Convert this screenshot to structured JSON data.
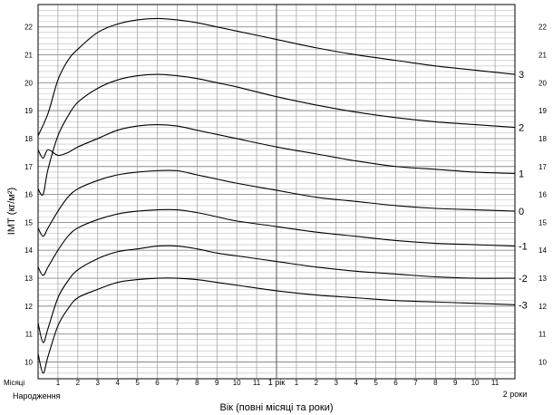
{
  "chart_data": {
    "type": "line",
    "xlabel": "Вік (повні місяці та роки)",
    "ylabel": "ІМТ (кг/м²)",
    "ylim": [
      9.4,
      22.8
    ],
    "xlim": [
      0,
      24
    ],
    "grid": true,
    "month_row_label": "Місяці",
    "x_ticks": [
      {
        "x": 0,
        "label": "Народження"
      },
      {
        "x": 1,
        "label": "1"
      },
      {
        "x": 2,
        "label": "2"
      },
      {
        "x": 3,
        "label": "3"
      },
      {
        "x": 4,
        "label": "4"
      },
      {
        "x": 5,
        "label": "5"
      },
      {
        "x": 6,
        "label": "6"
      },
      {
        "x": 7,
        "label": "7"
      },
      {
        "x": 8,
        "label": "8"
      },
      {
        "x": 9,
        "label": "9"
      },
      {
        "x": 10,
        "label": "10"
      },
      {
        "x": 11,
        "label": "11"
      },
      {
        "x": 12,
        "label": "1 рік"
      },
      {
        "x": 13,
        "label": "1"
      },
      {
        "x": 14,
        "label": "2"
      },
      {
        "x": 15,
        "label": "3"
      },
      {
        "x": 16,
        "label": "4"
      },
      {
        "x": 17,
        "label": "5"
      },
      {
        "x": 18,
        "label": "6"
      },
      {
        "x": 19,
        "label": "7"
      },
      {
        "x": 20,
        "label": "8"
      },
      {
        "x": 21,
        "label": "9"
      },
      {
        "x": 22,
        "label": "10"
      },
      {
        "x": 23,
        "label": "11"
      },
      {
        "x": 24,
        "label": "2 роки"
      }
    ],
    "y_ticks": [
      {
        "y": 10,
        "label": "10"
      },
      {
        "y": 11,
        "label": "11"
      },
      {
        "y": 12,
        "label": "12"
      },
      {
        "y": 13,
        "label": "13"
      },
      {
        "y": 14,
        "label": "14"
      },
      {
        "y": 15,
        "label": "15"
      },
      {
        "y": 16,
        "label": "16"
      },
      {
        "y": 17,
        "label": "17"
      },
      {
        "y": 18,
        "label": "18"
      },
      {
        "y": 19,
        "label": "19"
      },
      {
        "y": 20,
        "label": "20"
      },
      {
        "y": 21,
        "label": "21"
      },
      {
        "y": 22,
        "label": "22"
      }
    ],
    "series": [
      {
        "name": "3",
        "x": [
          0,
          0.5,
          1,
          1.5,
          2,
          3,
          4,
          5,
          6,
          7,
          8,
          9,
          10,
          12,
          14,
          16,
          18,
          20,
          22,
          24
        ],
        "values": [
          18.1,
          18.9,
          20.1,
          20.8,
          21.2,
          21.8,
          22.1,
          22.25,
          22.3,
          22.25,
          22.15,
          22.0,
          21.85,
          21.55,
          21.25,
          21.0,
          20.8,
          20.6,
          20.45,
          20.3
        ]
      },
      {
        "name": "2",
        "x": [
          0,
          0.25,
          0.5,
          1,
          1.5,
          2,
          3,
          4,
          5,
          6,
          7,
          8,
          9,
          10,
          12,
          14,
          16,
          18,
          20,
          22,
          24
        ],
        "values": [
          16.2,
          16.0,
          16.9,
          18.1,
          18.8,
          19.3,
          19.8,
          20.1,
          20.25,
          20.3,
          20.25,
          20.15,
          20.0,
          19.85,
          19.5,
          19.2,
          18.95,
          18.75,
          18.6,
          18.5,
          18.4
        ]
      },
      {
        "name": "1",
        "x": [
          0,
          0.25,
          0.5,
          1,
          1.5,
          2,
          3,
          4,
          5,
          6,
          7,
          8,
          9,
          10,
          12,
          14,
          16,
          18,
          20,
          22,
          24
        ],
        "values": [
          17.6,
          17.3,
          17.6,
          17.4,
          17.5,
          17.7,
          18.0,
          18.3,
          18.45,
          18.5,
          18.45,
          18.3,
          18.15,
          18.0,
          17.7,
          17.45,
          17.2,
          17.0,
          16.9,
          16.8,
          16.75
        ]
      },
      {
        "name": "0",
        "x": [
          0,
          0.25,
          0.5,
          1,
          1.5,
          2,
          3,
          4,
          5,
          6,
          7,
          8,
          9,
          10,
          12,
          14,
          16,
          18,
          20,
          22,
          24
        ],
        "values": [
          14.8,
          14.5,
          14.8,
          15.4,
          15.9,
          16.2,
          16.5,
          16.7,
          16.8,
          16.85,
          16.85,
          16.7,
          16.55,
          16.4,
          16.15,
          15.9,
          15.75,
          15.6,
          15.5,
          15.45,
          15.4
        ]
      },
      {
        "name": "-1",
        "x": [
          0,
          0.25,
          0.5,
          1,
          1.5,
          2,
          3,
          4,
          5,
          6,
          7,
          8,
          9,
          10,
          12,
          14,
          16,
          18,
          20,
          22,
          24
        ],
        "values": [
          13.4,
          13.1,
          13.4,
          14.0,
          14.5,
          14.8,
          15.1,
          15.3,
          15.4,
          15.45,
          15.45,
          15.35,
          15.2,
          15.05,
          14.85,
          14.65,
          14.5,
          14.35,
          14.25,
          14.2,
          14.15
        ]
      },
      {
        "name": "-2",
        "x": [
          0,
          0.25,
          0.5,
          1,
          1.5,
          2,
          3,
          4,
          5,
          6,
          7,
          8,
          9,
          10,
          12,
          14,
          16,
          18,
          20,
          22,
          24
        ],
        "values": [
          11.4,
          10.7,
          11.2,
          12.3,
          12.9,
          13.3,
          13.7,
          13.95,
          14.05,
          14.15,
          14.15,
          14.05,
          13.9,
          13.8,
          13.6,
          13.4,
          13.25,
          13.15,
          13.05,
          13.0,
          13.0
        ]
      },
      {
        "name": "-3",
        "x": [
          0,
          0.25,
          0.5,
          1,
          1.5,
          2,
          3,
          4,
          5,
          6,
          7,
          8,
          9,
          10,
          12,
          14,
          16,
          18,
          20,
          22,
          24
        ],
        "values": [
          10.3,
          9.6,
          10.2,
          11.3,
          11.9,
          12.3,
          12.6,
          12.85,
          12.95,
          13.0,
          13.0,
          12.95,
          12.85,
          12.75,
          12.55,
          12.4,
          12.3,
          12.2,
          12.15,
          12.1,
          12.05
        ]
      }
    ]
  }
}
